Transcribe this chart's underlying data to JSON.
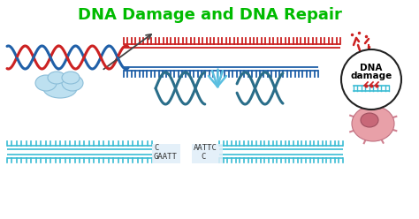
{
  "title": "DNA Damage and DNA Repair",
  "title_color": "#00BB00",
  "title_fontsize": 13,
  "bg_color": "#FFFFFF",
  "teal": "#3BBCD4",
  "red": "#CC2222",
  "dark_teal": "#2A6E8A",
  "dna_label1_top": "C",
  "dna_label1_bot": "GAATT",
  "dna_label2_top": "AATTC",
  "dna_label2_bot": "C",
  "figsize": [
    4.74,
    2.48
  ],
  "dpi": 100,
  "xlim": [
    0,
    474
  ],
  "ylim": [
    0,
    248
  ]
}
